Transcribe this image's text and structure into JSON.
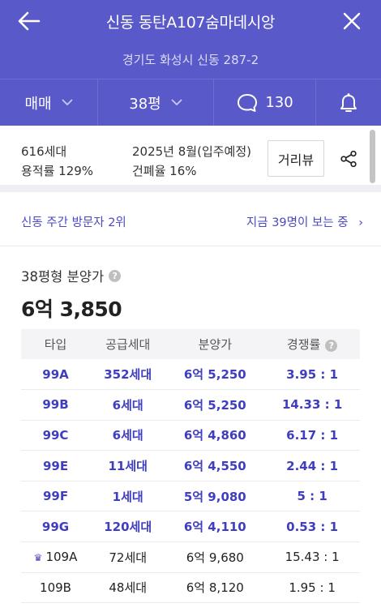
{
  "header": {
    "title": "신동 동탄A107숨마데시앙",
    "address": "경기도 화성시 신동 287-2"
  },
  "filters": {
    "trade_type": "매매",
    "area": "38평",
    "comments_count": "130"
  },
  "summary": {
    "households": "616세대",
    "floor_area_ratio": "용적률 129%",
    "move_in": "2025년 8월(입주예정)",
    "coverage_ratio": "건폐율 16%",
    "distance_view_label": "거리뷰"
  },
  "visitors": {
    "rank_text": "신동 주간 방문자 2위",
    "viewing_text": "지금 39명이 보는 중"
  },
  "price": {
    "label": "38평형 분양가",
    "value": "6억 3,850"
  },
  "table": {
    "headers": [
      "타입",
      "공급세대",
      "분양가",
      "경쟁률"
    ],
    "rows": [
      {
        "type": "99A",
        "units": "352세대",
        "price": "6억 5,250",
        "rate": "3.95 : 1",
        "highlight": true
      },
      {
        "type": "99B",
        "units": "6세대",
        "price": "6억 5,250",
        "rate": "14.33 : 1",
        "highlight": true
      },
      {
        "type": "99C",
        "units": "6세대",
        "price": "6억 4,860",
        "rate": "6.17 : 1",
        "highlight": true
      },
      {
        "type": "99E",
        "units": "11세대",
        "price": "6억 4,550",
        "rate": "2.44 : 1",
        "highlight": true
      },
      {
        "type": "99F",
        "units": "1세대",
        "price": "5억 9,080",
        "rate": "5 : 1",
        "highlight": true
      },
      {
        "type": "99G",
        "units": "120세대",
        "price": "6억 4,110",
        "rate": "0.53 : 1",
        "highlight": true
      },
      {
        "type": "109A",
        "units": "72세대",
        "price": "6억 9,680",
        "rate": "15.43 : 1",
        "highlight": false,
        "crown": true
      },
      {
        "type": "109B",
        "units": "48세대",
        "price": "6억 8,120",
        "rate": "1.95 : 1",
        "highlight": false
      }
    ]
  },
  "colors": {
    "brand": "#5a59c9",
    "highlight_text": "#3f3ec0"
  }
}
